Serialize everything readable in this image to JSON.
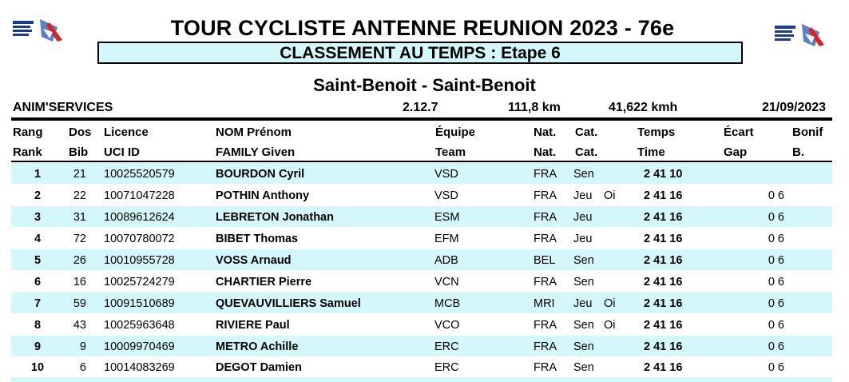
{
  "header": {
    "title": "TOUR CYCLISTE ANTENNE REUNION 2023 - 76e",
    "subtitle": "CLASSEMENT AU TEMPS : Etape 6",
    "route": "Saint-Benoit - Saint-Benoit"
  },
  "info": {
    "organizer": "ANIM'SERVICES",
    "code": "2.12.7",
    "distance": "111,8 km",
    "speed": "41,622 kmh",
    "date": "21/09/2023"
  },
  "columns": {
    "row1": {
      "rank": "Rang",
      "bib": "Dos",
      "uci": "Licence",
      "name": "NOM Prénom",
      "team": "Équipe",
      "nat": "Nat.",
      "cat": "Cat.",
      "time": "Temps",
      "gap": "Écart",
      "bonus": "Bonif"
    },
    "row2": {
      "rank": "Rank",
      "bib": "Bib",
      "uci": "UCI ID",
      "name": "FAMILY Given",
      "team": "Team",
      "nat": "Nat.",
      "cat": "Cat.",
      "time": "Time",
      "gap": "Gap",
      "bonus": "B."
    }
  },
  "rows": [
    {
      "rank": "1",
      "bib": "21",
      "uci": "10025520579",
      "name": "BOURDON Cyril",
      "team": "VSD",
      "nat": "FRA",
      "cat": "Sen",
      "extra": "",
      "time": "2 41 10",
      "gap": ""
    },
    {
      "rank": "2",
      "bib": "22",
      "uci": "10071047228",
      "name": "POTHIN Anthony",
      "team": "VSD",
      "nat": "FRA",
      "cat": "Jeu",
      "extra": "Oi",
      "time": "2 41 16",
      "gap": "0 6"
    },
    {
      "rank": "3",
      "bib": "31",
      "uci": "10089612624",
      "name": "LEBRETON Jonathan",
      "team": "ESM",
      "nat": "FRA",
      "cat": "Jeu",
      "extra": "",
      "time": "2 41 16",
      "gap": "0 6"
    },
    {
      "rank": "4",
      "bib": "72",
      "uci": "10070780072",
      "name": "BIBET Thomas",
      "team": "EFM",
      "nat": "FRA",
      "cat": "Jeu",
      "extra": "",
      "time": "2 41 16",
      "gap": "0 6"
    },
    {
      "rank": "5",
      "bib": "26",
      "uci": "10010955728",
      "name": "VOSS Arnaud",
      "team": "ADB",
      "nat": "BEL",
      "cat": "Sen",
      "extra": "",
      "time": "2 41 16",
      "gap": "0 6"
    },
    {
      "rank": "6",
      "bib": "16",
      "uci": "10025724279",
      "name": "CHARTIER Pierre",
      "team": "VCN",
      "nat": "FRA",
      "cat": "Sen",
      "extra": "",
      "time": "2 41 16",
      "gap": "0 6"
    },
    {
      "rank": "7",
      "bib": "59",
      "uci": "10091510689",
      "name": "QUEVAUVILLIERS Samuel",
      "team": "MCB",
      "nat": "MRI",
      "cat": "Jeu",
      "extra": "Oi",
      "time": "2 41 16",
      "gap": "0 6"
    },
    {
      "rank": "8",
      "bib": "43",
      "uci": "10025963648",
      "name": "RIVIERE Paul",
      "team": "VCO",
      "nat": "FRA",
      "cat": "Sen",
      "extra": "Oi",
      "time": "2 41 16",
      "gap": "0 6"
    },
    {
      "rank": "9",
      "bib": "9",
      "uci": "10009970469",
      "name": "METRO Achille",
      "team": "ERC",
      "nat": "FRA",
      "cat": "Sen",
      "extra": "",
      "time": "2 41 16",
      "gap": "0 6"
    },
    {
      "rank": "10",
      "bib": "6",
      "uci": "10014083269",
      "name": "DEGOT Damien",
      "team": "ERC",
      "nat": "FRA",
      "cat": "Sen",
      "extra": "",
      "time": "2 41 16",
      "gap": "0 6"
    }
  ]
}
